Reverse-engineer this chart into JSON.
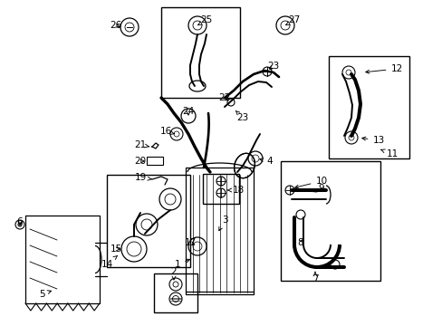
{
  "background_color": "#ffffff",
  "fig_width": 4.89,
  "fig_height": 3.6,
  "dpi": 100,
  "image_data": ""
}
